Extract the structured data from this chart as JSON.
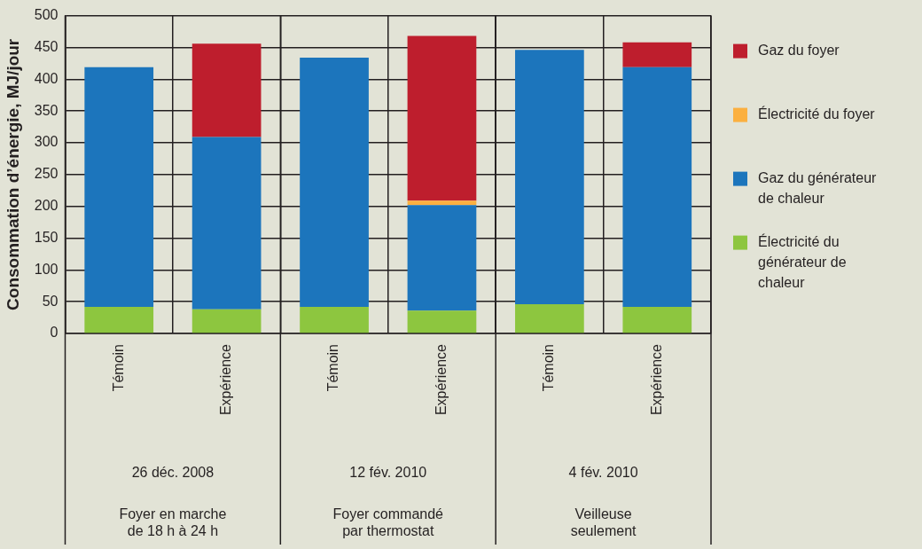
{
  "chart_data": {
    "type": "bar",
    "stacked": true,
    "ylabel": "Consommation d’énergie, MJ/jour",
    "categories": [
      "Témoin",
      "Expérience",
      "Témoin",
      "Expérience",
      "Témoin",
      "Expérience"
    ],
    "annotations": [
      "26 déc. 2008",
      "Foyer en marche de 18 h à 24 h",
      "12 fév. 2010",
      "Foyer commandé par thermostat",
      "4 fév. 2010",
      "Veilleuse seulement"
    ],
    "series": [
      {
        "name": "Électricité du générateur de chaleur",
        "color": "#8dc63f",
        "values": [
          42,
          38,
          42,
          36,
          46,
          42
        ]
      },
      {
        "name": "Gaz du générateur de chaleur",
        "color": "#1c75bc",
        "values": [
          377,
          271,
          392,
          166,
          400,
          377
        ]
      },
      {
        "name": "Électricité du foyer",
        "color": "#fbb040",
        "values": [
          null,
          null,
          null,
          7,
          null,
          null
        ]
      },
      {
        "name": "Gaz du foyer",
        "color": "#be1e2d",
        "values": [
          null,
          147,
          null,
          259,
          null,
          39
        ]
      }
    ],
    "ylim": [
      0,
      500
    ],
    "yticks": [
      0,
      50,
      100,
      150,
      200,
      250,
      300,
      350,
      400,
      450,
      500
    ],
    "grid": true,
    "legend": "right"
  }
}
